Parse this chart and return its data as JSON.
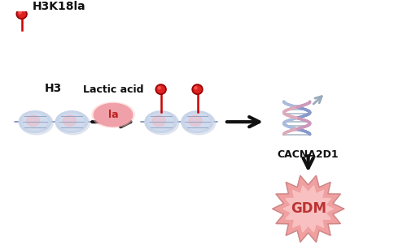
{
  "background_color": "#ffffff",
  "legend_label": "H3K18la",
  "pin_color": "#cc0000",
  "h3_label": "H3",
  "lactic_acid_label": "Lactic acid",
  "la_label": "la",
  "cacna2d1_label": "CACNA2D1",
  "gdm_label": "GDM",
  "nuc_outer_color": "#c8d4e8",
  "nuc_inner_color": "#b8c8e0",
  "nuc_pink_color": "#e8c0cc",
  "nuc_line_color": "#8899bb",
  "dna_strand_color": "#a8b8d0",
  "lactic_blob_color": "#f0a0a8",
  "lactic_blob_edge": "#dd8888",
  "gdm_burst_outer": "#f0a0a0",
  "gdm_burst_inner": "#f8c0c0",
  "gdm_burst_edge": "#cc8888",
  "arrow_color": "#111111",
  "dna_arrow_color": "#99aabb",
  "text_color": "#111111"
}
